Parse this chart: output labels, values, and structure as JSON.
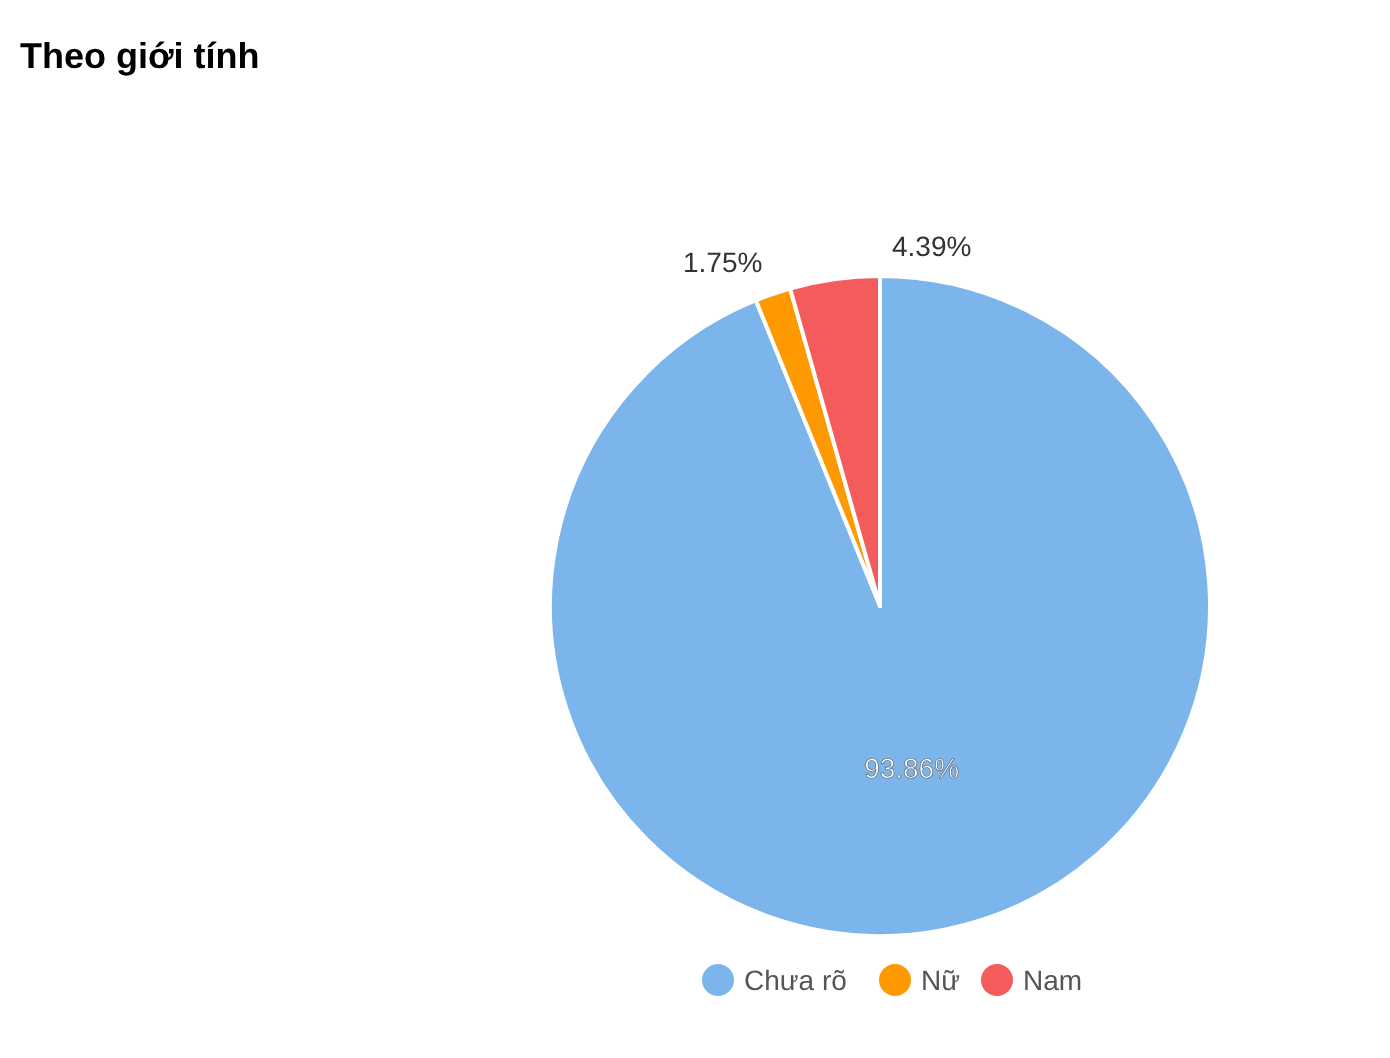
{
  "chart_data": {
    "type": "pie",
    "title": "Theo giới tính",
    "categories": [
      "Chưa rõ",
      "Nữ",
      "Nam"
    ],
    "values": [
      93.86,
      1.75,
      4.39
    ],
    "colors": [
      "#7cb5ec",
      "#ff9900",
      "#f45b5b"
    ],
    "value_labels": [
      "93.86%",
      "1.75%",
      "4.39%"
    ],
    "legend": "bottom"
  }
}
